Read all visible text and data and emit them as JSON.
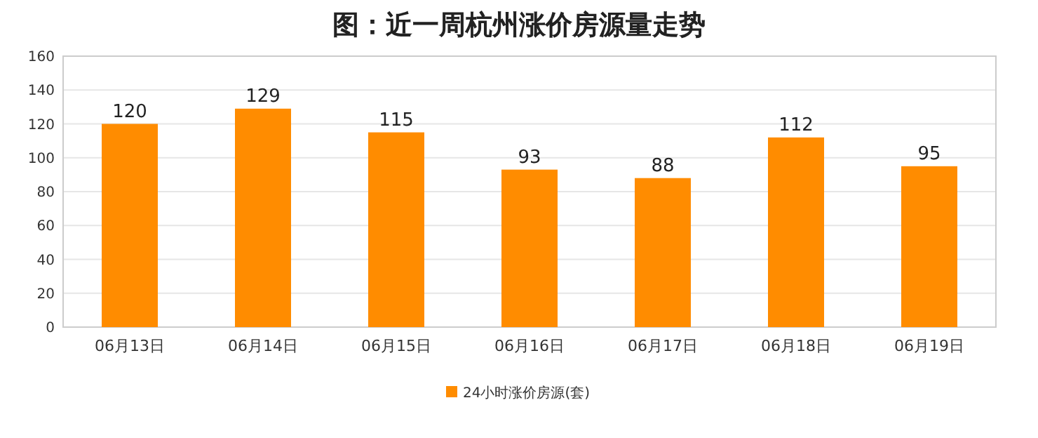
{
  "chart_data": {
    "type": "bar",
    "title": "图：近一周杭州涨价房源量走势",
    "categories": [
      "06月13日",
      "06月14日",
      "06月15日",
      "06月16日",
      "06月17日",
      "06月18日",
      "06月19日"
    ],
    "series": [
      {
        "name": "24小时涨价房源(套)",
        "color": "#ff8c00",
        "values": [
          120,
          129,
          115,
          93,
          88,
          112,
          95
        ]
      }
    ],
    "ylim": [
      0,
      160
    ],
    "yticks": [
      0,
      20,
      40,
      60,
      80,
      100,
      120,
      140,
      160
    ],
    "grid": "y",
    "legend": "bottom",
    "data_labels": true
  }
}
